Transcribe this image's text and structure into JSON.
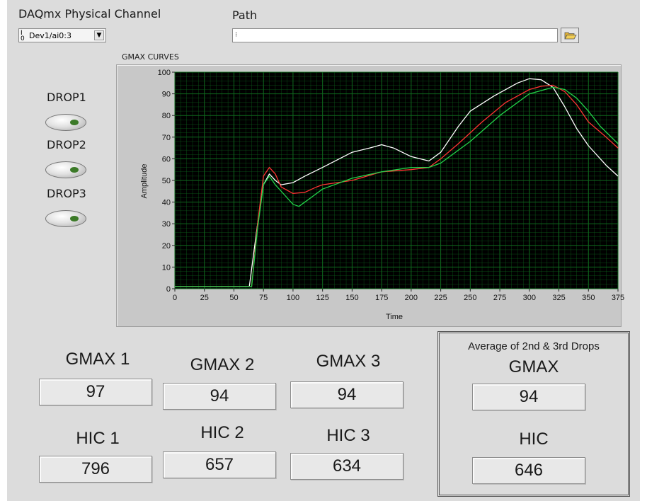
{
  "labels": {
    "channel": "DAQmx Physical Channel",
    "path": "Path",
    "graph_title": "GMAX CURVES",
    "drop1": "DROP1",
    "drop2": "DROP2",
    "drop3": "DROP3",
    "gmax1": "GMAX 1",
    "gmax2": "GMAX 2",
    "gmax3": "GMAX 3",
    "hic1": "HIC 1",
    "hic2": "HIC 2",
    "hic3": "HIC 3",
    "avg_title": "Average of 2nd & 3rd Drops",
    "avg_gmax": "GMAX",
    "avg_hic": "HIC"
  },
  "inputs": {
    "channel_value": "Dev1/ai0:3",
    "path_value": ""
  },
  "values": {
    "gmax1": "97",
    "gmax2": "94",
    "gmax3": "94",
    "hic1": "796",
    "hic2": "657",
    "hic3": "634",
    "avg_gmax": "94",
    "avg_hic": "646"
  },
  "icons": {
    "io_glyph": "I/O",
    "path_glyph": "path-icon",
    "browse": "folder-open-icon",
    "dropdown": "chevron-down-icon"
  },
  "colors": {
    "plot_bg": "#000000",
    "grid": "#0f6a1e",
    "drop1": "#ffffff",
    "drop2": "#ff3333",
    "drop3": "#22d34a"
  },
  "chart_data": {
    "type": "line",
    "title": "GMAX CURVES",
    "xlabel": "Time",
    "ylabel": "Amplitude",
    "xlim": [
      0,
      375
    ],
    "ylim": [
      0,
      100
    ],
    "xticks": [
      0,
      25,
      50,
      75,
      100,
      125,
      150,
      175,
      200,
      225,
      250,
      275,
      300,
      325,
      350,
      375
    ],
    "yticks": [
      0,
      10,
      20,
      30,
      40,
      50,
      60,
      70,
      80,
      90,
      100
    ],
    "grid": true,
    "series": [
      {
        "color": "#ffffff",
        "points": [
          [
            0,
            1
          ],
          [
            60,
            1
          ],
          [
            63,
            1
          ],
          [
            70,
            30
          ],
          [
            75,
            48
          ],
          [
            80,
            53
          ],
          [
            85,
            50
          ],
          [
            90,
            48
          ],
          [
            100,
            49
          ],
          [
            110,
            52
          ],
          [
            125,
            56
          ],
          [
            150,
            63
          ],
          [
            165,
            65
          ],
          [
            175,
            66.5
          ],
          [
            185,
            65
          ],
          [
            200,
            61
          ],
          [
            215,
            59
          ],
          [
            225,
            63
          ],
          [
            240,
            75
          ],
          [
            250,
            82
          ],
          [
            270,
            89
          ],
          [
            290,
            95
          ],
          [
            300,
            97
          ],
          [
            310,
            96.5
          ],
          [
            320,
            93
          ],
          [
            330,
            84
          ],
          [
            340,
            74
          ],
          [
            350,
            66
          ],
          [
            365,
            57
          ],
          [
            375,
            52
          ]
        ]
      },
      {
        "color": "#ff3333",
        "points": [
          [
            0,
            1
          ],
          [
            62,
            1
          ],
          [
            65,
            1
          ],
          [
            70,
            30
          ],
          [
            75,
            52
          ],
          [
            80,
            56
          ],
          [
            85,
            53
          ],
          [
            90,
            47
          ],
          [
            100,
            44
          ],
          [
            110,
            44.5
          ],
          [
            120,
            47
          ],
          [
            125,
            48
          ],
          [
            150,
            50
          ],
          [
            175,
            54
          ],
          [
            200,
            55
          ],
          [
            215,
            56
          ],
          [
            225,
            60
          ],
          [
            240,
            67
          ],
          [
            260,
            77
          ],
          [
            280,
            86
          ],
          [
            300,
            92
          ],
          [
            310,
            93.5
          ],
          [
            320,
            94
          ],
          [
            330,
            91
          ],
          [
            340,
            85
          ],
          [
            350,
            77
          ],
          [
            365,
            70
          ],
          [
            375,
            65
          ]
        ]
      },
      {
        "color": "#22d34a",
        "points": [
          [
            0,
            1
          ],
          [
            62,
            1
          ],
          [
            65,
            1
          ],
          [
            70,
            28
          ],
          [
            75,
            48
          ],
          [
            80,
            52
          ],
          [
            85,
            48
          ],
          [
            95,
            42
          ],
          [
            100,
            39
          ],
          [
            105,
            38
          ],
          [
            115,
            42
          ],
          [
            125,
            46
          ],
          [
            150,
            51
          ],
          [
            175,
            54
          ],
          [
            200,
            56
          ],
          [
            215,
            56
          ],
          [
            225,
            58
          ],
          [
            250,
            68
          ],
          [
            275,
            80
          ],
          [
            300,
            90
          ],
          [
            320,
            93
          ],
          [
            330,
            92
          ],
          [
            340,
            88
          ],
          [
            350,
            82
          ],
          [
            360,
            75
          ],
          [
            375,
            67
          ]
        ]
      }
    ]
  }
}
